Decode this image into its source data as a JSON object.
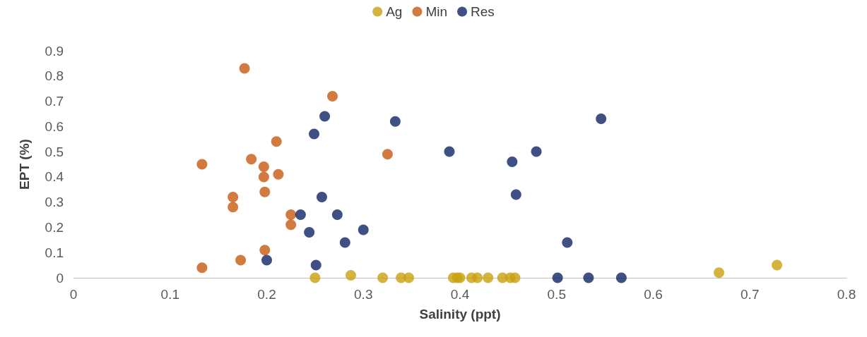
{
  "chart_data": {
    "type": "scatter",
    "xlabel": "Salinity (ppt)",
    "ylabel": "EPT (%)",
    "xlim": [
      0,
      0.8
    ],
    "xticks": [
      0,
      0.1,
      0.2,
      0.3,
      0.4,
      0.5,
      0.6,
      0.7,
      0.8
    ],
    "ylim": [
      0,
      0.9
    ],
    "yticks": [
      0,
      0.1,
      0.2,
      0.3,
      0.4,
      0.5,
      0.6,
      0.7,
      0.8,
      0.9
    ],
    "grid": false,
    "legend": "top",
    "marker": "circle",
    "series": [
      {
        "name": "Ag",
        "color": "#c9a00e",
        "x": [
          0.25,
          0.287,
          0.32,
          0.339,
          0.347,
          0.393,
          0.397,
          0.4,
          0.412,
          0.418,
          0.429,
          0.444,
          0.452,
          0.457,
          0.668,
          0.728
        ],
        "values": [
          0,
          0.01,
          0,
          0,
          0,
          0,
          0,
          0,
          0,
          0,
          0,
          0,
          0,
          0,
          0.02,
          0.05
        ]
      },
      {
        "name": "Min",
        "color": "#c55a11",
        "x": [
          0.133,
          0.133,
          0.165,
          0.165,
          0.173,
          0.177,
          0.184,
          0.197,
          0.197,
          0.198,
          0.198,
          0.21,
          0.212,
          0.225,
          0.225,
          0.268,
          0.325
        ],
        "values": [
          0.45,
          0.04,
          0.32,
          0.28,
          0.07,
          0.83,
          0.47,
          0.44,
          0.4,
          0.34,
          0.11,
          0.54,
          0.41,
          0.25,
          0.21,
          0.72,
          0.49
        ]
      },
      {
        "name": "Res",
        "color": "#0f2466",
        "x": [
          0.2,
          0.235,
          0.244,
          0.249,
          0.251,
          0.26,
          0.257,
          0.273,
          0.281,
          0.3,
          0.333,
          0.389,
          0.454,
          0.458,
          0.479,
          0.511,
          0.501,
          0.533,
          0.567,
          0.546
        ],
        "values": [
          0.07,
          0.25,
          0.18,
          0.57,
          0.05,
          0.64,
          0.32,
          0.25,
          0.14,
          0.19,
          0.62,
          0.5,
          0.46,
          0.33,
          0.5,
          0.14,
          0,
          0,
          0,
          0.63
        ]
      }
    ]
  }
}
